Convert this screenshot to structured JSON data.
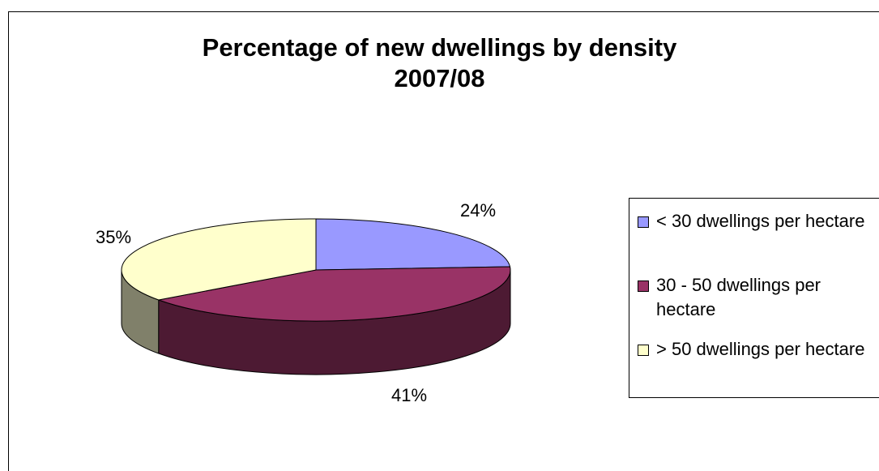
{
  "chart_data": {
    "type": "pie",
    "title": "Percentage of new dwellings by density",
    "subtitle": "2007/08",
    "categories": [
      "< 30 dwellings per hectare",
      "30 - 50 dwellings per hectare",
      "> 50 dwellings per hectare"
    ],
    "values": [
      24,
      41,
      35
    ],
    "data_labels": [
      "24%",
      "41%",
      "35%"
    ],
    "colors": [
      "#9999ff",
      "#993366",
      "#ffffcc"
    ],
    "side_colors": [
      "#4c4c80",
      "#4d1a33",
      "#80806a"
    ],
    "legend_position": "right",
    "style": "3d"
  }
}
